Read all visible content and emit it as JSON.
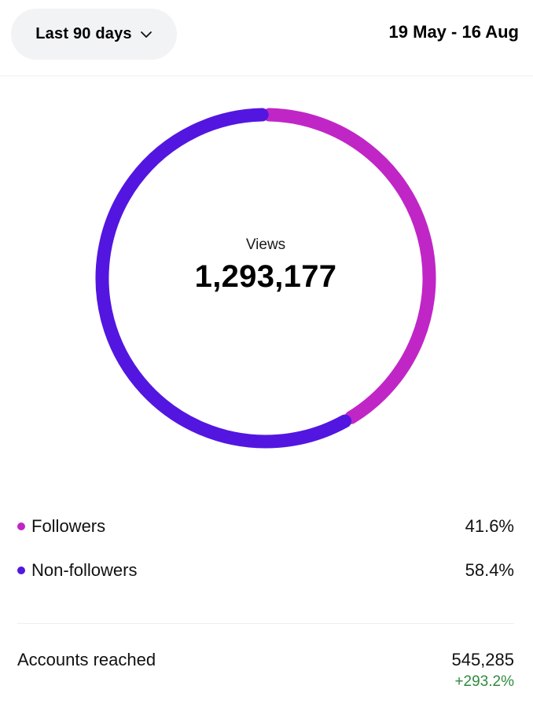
{
  "header": {
    "range_label": "Last 90 days",
    "range_icon": "chevron-down-icon",
    "date_range": "19 May - 16 Aug"
  },
  "chart_data": {
    "type": "pie",
    "title": "",
    "center_label": "Views",
    "center_value": "1,293,177",
    "categories": [
      "Followers",
      "Non-followers"
    ],
    "values": [
      41.6,
      58.4
    ],
    "colors": [
      "#c026c6",
      "#5316e0"
    ],
    "start_angle_deg": 0,
    "direction": "clockwise"
  },
  "legend": [
    {
      "label": "Followers",
      "value": "41.6%",
      "color": "#c026c6"
    },
    {
      "label": "Non-followers",
      "value": "58.4%",
      "color": "#5316e0"
    }
  ],
  "summary": {
    "accounts_label": "Accounts reached",
    "accounts_value": "545,285",
    "accounts_change": "+293.2%",
    "change_color": "#2e8b3d"
  }
}
